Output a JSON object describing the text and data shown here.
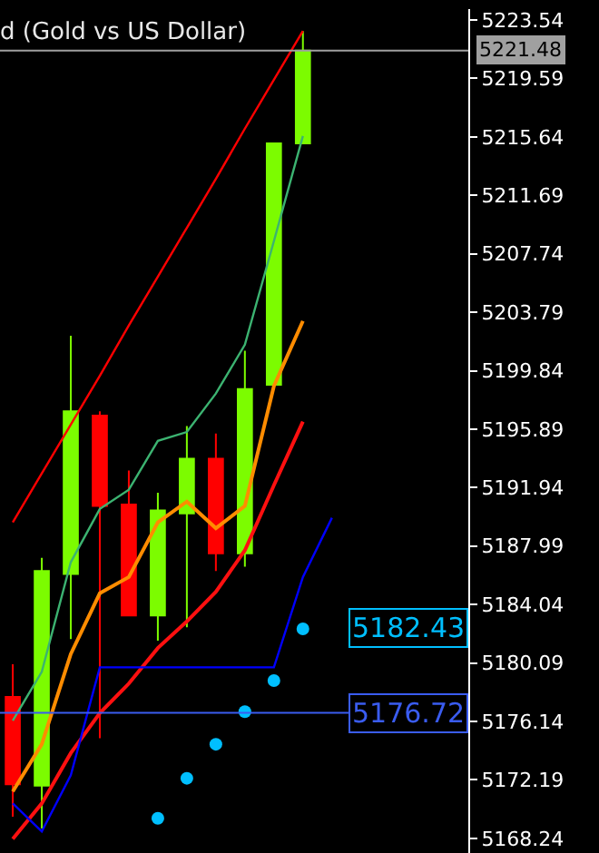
{
  "chart_data": {
    "type": "candlestick",
    "title": "d (Gold vs US Dollar)",
    "categories": [
      null,
      null,
      null,
      null,
      null,
      null,
      null,
      null,
      null,
      null,
      null,
      null,
      null,
      null,
      null,
      null
    ],
    "ohlc": [
      [
        5177.8,
        5180.0,
        5169.7,
        5171.9
      ],
      [
        5171.8,
        5187.2,
        5168.9,
        5186.3
      ],
      [
        5186.1,
        5202.2,
        5181.7,
        5197.1
      ],
      [
        5196.8,
        5197.1,
        5175.0,
        5190.7
      ],
      [
        5190.8,
        5193.1,
        5183.3,
        5183.3
      ],
      [
        5183.3,
        5191.6,
        5181.6,
        5190.4
      ],
      [
        5190.2,
        5196.1,
        5182.5,
        5193.9
      ],
      [
        5193.9,
        5195.6,
        5186.3,
        5187.5
      ],
      [
        5187.5,
        5201.2,
        5186.6,
        5198.6
      ],
      [
        5198.9,
        5215.2,
        5198.9,
        5215.2
      ],
      [
        5215.2,
        5222.8,
        5215.2,
        5221.48
      ],
      null,
      null,
      null,
      null,
      null
    ],
    "colors": [
      "#ff0000",
      "#7cfc00",
      "#7cfc00",
      "#ff0000",
      "#ff0000",
      "#7cfc00",
      "#7cfc00",
      "#ff0000",
      "#7cfc00",
      "#7cfc00",
      "#7cfc00",
      null,
      null,
      null,
      null,
      null
    ],
    "series": [
      {
        "type": "line",
        "color": "#ff0000",
        "values": [
          5189.6,
          5192.9,
          5196.2,
          5199.5,
          5202.9,
          5206.2,
          5209.5,
          5212.8,
          5216.2,
          5219.5,
          5222.8,
          null,
          null,
          null,
          null,
          null
        ]
      },
      {
        "type": "line",
        "color": "#3cb371",
        "values": [
          5176.2,
          5179.5,
          5186.9,
          5190.5,
          5191.8,
          5195.1,
          5195.7,
          5198.3,
          5201.6,
          5208.6,
          5215.7,
          null,
          null,
          null,
          null,
          null
        ]
      },
      {
        "type": "line",
        "color": "#ff8c00",
        "values": [
          5171.4,
          5174.6,
          5180.7,
          5184.8,
          5185.9,
          5189.6,
          5191.0,
          5189.2,
          5190.7,
          5198.8,
          5203.2,
          null,
          null,
          null,
          null,
          null
        ]
      },
      {
        "type": "line",
        "color": "#ff1010",
        "values": [
          5168.2,
          5170.6,
          5174.0,
          5176.7,
          5178.7,
          5181.1,
          5182.9,
          5184.9,
          5187.7,
          5192.1,
          5196.4,
          null,
          null,
          null,
          null,
          null
        ]
      },
      {
        "type": "line",
        "color": "#0000ff",
        "values": [
          5170.6,
          5168.7,
          5172.5,
          5179.8,
          5179.8,
          5179.8,
          5179.8,
          5179.8,
          5179.8,
          5179.8,
          5185.9,
          5189.9,
          null,
          null,
          null,
          null
        ]
      },
      {
        "type": "scatter",
        "color": "#00bfff",
        "marker": "circle",
        "values": [
          null,
          null,
          null,
          null,
          null,
          5169.6,
          5172.3,
          5174.6,
          5176.8,
          5178.9,
          5182.4,
          null,
          null,
          null,
          null,
          null
        ]
      }
    ],
    "ylim": [
      5167.25,
      5224.28
    ],
    "yticks": [
      5223.54,
      5219.59,
      5215.64,
      5211.69,
      5207.74,
      5203.79,
      5199.84,
      5195.89,
      5191.94,
      5187.99,
      5184.04,
      5180.09,
      5176.14,
      5172.19,
      5168.24
    ],
    "ref_lines": [
      {
        "axis": "y",
        "value": 5221.48,
        "label": "5221.48",
        "color": "#a0a0a0"
      },
      {
        "axis": "y",
        "value": 5176.72,
        "label": "5176.72",
        "color": "#3a5cf0"
      }
    ],
    "annotations": [
      "5182.43"
    ],
    "tick_labels": "y",
    "grid": false
  }
}
